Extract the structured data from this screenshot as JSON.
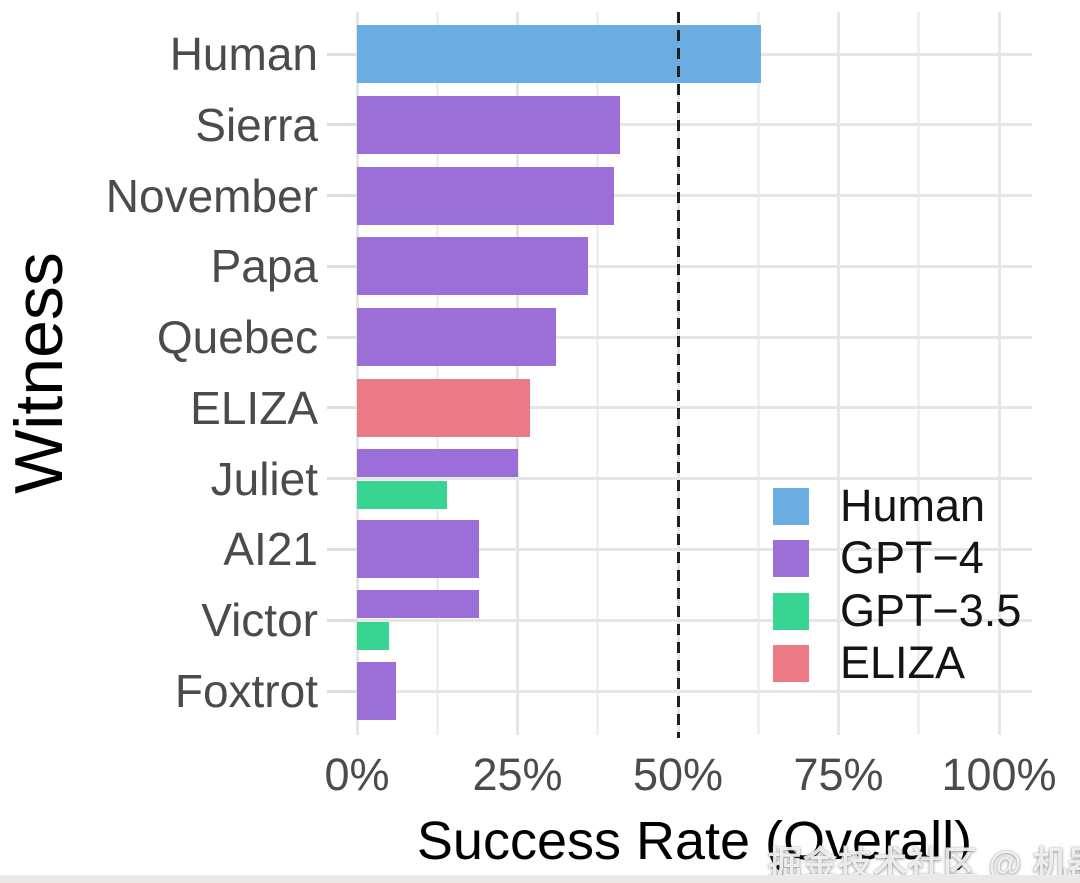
{
  "watermark": "掘金技术社区 @ 机器之心",
  "colors": {
    "background": "#ffffff",
    "grid_major": "#e6e6e6",
    "grid_minor": "#f0f0f0",
    "axis_tick": "#dedede",
    "axis_text": "#4b4b4b",
    "title_text": "#000000",
    "reference_line": "#1f1f1f",
    "groups": {
      "Human": "#6BACE1",
      "GPT-4": "#9C6FD8",
      "GPT-3.5": "#38D592",
      "ELIZA": "#EC7A86"
    }
  },
  "chart_data": {
    "type": "bar",
    "orientation": "horizontal",
    "title": "",
    "xlabel": "Success Rate (Overall)",
    "ylabel": "Witness",
    "xlim": [
      0,
      100
    ],
    "x_tick_values": [
      0,
      25,
      50,
      75,
      100
    ],
    "x_tick_labels": [
      "0%",
      "25%",
      "50%",
      "75%",
      "100%"
    ],
    "grid": true,
    "reference_line": {
      "value": 50,
      "style": "dashed",
      "color": "#1f1f1f"
    },
    "legend": {
      "position": "inside-right",
      "entries": [
        {
          "label": "Human",
          "color": "#6BACE1"
        },
        {
          "label": "GPT−4",
          "color": "#9C6FD8"
        },
        {
          "label": "GPT−3.5",
          "color": "#38D592"
        },
        {
          "label": "ELIZA",
          "color": "#EC7A86"
        }
      ]
    },
    "rows": [
      {
        "witness": "Human",
        "bars": [
          {
            "group": "Human",
            "value": 63
          }
        ]
      },
      {
        "witness": "Sierra",
        "bars": [
          {
            "group": "GPT-4",
            "value": 41
          }
        ]
      },
      {
        "witness": "November",
        "bars": [
          {
            "group": "GPT-4",
            "value": 40
          }
        ]
      },
      {
        "witness": "Papa",
        "bars": [
          {
            "group": "GPT-4",
            "value": 36
          }
        ]
      },
      {
        "witness": "Quebec",
        "bars": [
          {
            "group": "GPT-4",
            "value": 31
          }
        ]
      },
      {
        "witness": "ELIZA",
        "bars": [
          {
            "group": "ELIZA",
            "value": 27
          }
        ]
      },
      {
        "witness": "Juliet",
        "bars": [
          {
            "group": "GPT-4",
            "value": 25
          },
          {
            "group": "GPT-3.5",
            "value": 14
          }
        ]
      },
      {
        "witness": "AI21",
        "bars": [
          {
            "group": "GPT-4",
            "value": 19
          }
        ]
      },
      {
        "witness": "Victor",
        "bars": [
          {
            "group": "GPT-4",
            "value": 19
          },
          {
            "group": "GPT-3.5",
            "value": 5
          }
        ]
      },
      {
        "witness": "Foxtrot",
        "bars": [
          {
            "group": "GPT-4",
            "value": 6
          }
        ]
      }
    ]
  }
}
